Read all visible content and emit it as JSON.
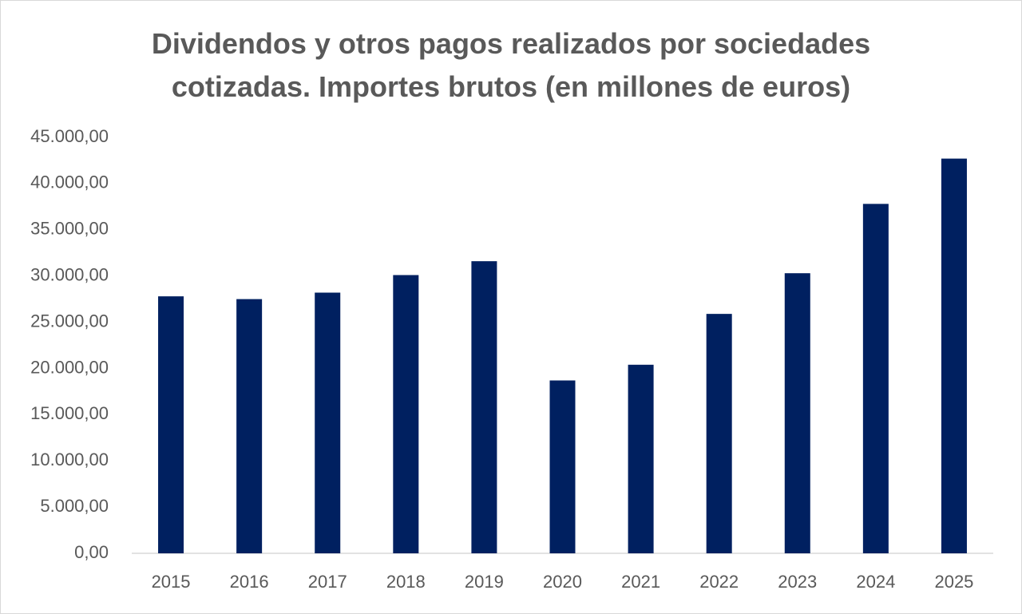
{
  "chart_data": {
    "type": "bar",
    "title": "Dividendos y otros pagos realizados por sociedades cotizadas. Importes brutos (en millones de euros)",
    "categories": [
      "2015",
      "2016",
      "2017",
      "2018",
      "2019",
      "2020",
      "2021",
      "2022",
      "2023",
      "2024",
      "2025"
    ],
    "values": [
      27800,
      27500,
      28200,
      30100,
      31600,
      18700,
      20400,
      25900,
      30300,
      37800,
      42700
    ],
    "color": "#002060",
    "ylim": [
      0,
      45000
    ],
    "yticks": [
      {
        "value": 0,
        "label": "0,00"
      },
      {
        "value": 5000,
        "label": "5.000,00"
      },
      {
        "value": 10000,
        "label": "10.000,00"
      },
      {
        "value": 15000,
        "label": "15.000,00"
      },
      {
        "value": 20000,
        "label": "20.000,00"
      },
      {
        "value": 25000,
        "label": "25.000,00"
      },
      {
        "value": 30000,
        "label": "30.000,00"
      },
      {
        "value": 35000,
        "label": "35.000,00"
      },
      {
        "value": 40000,
        "label": "40.000,00"
      },
      {
        "value": 45000,
        "label": "45.000,00"
      }
    ],
    "grid": false
  }
}
